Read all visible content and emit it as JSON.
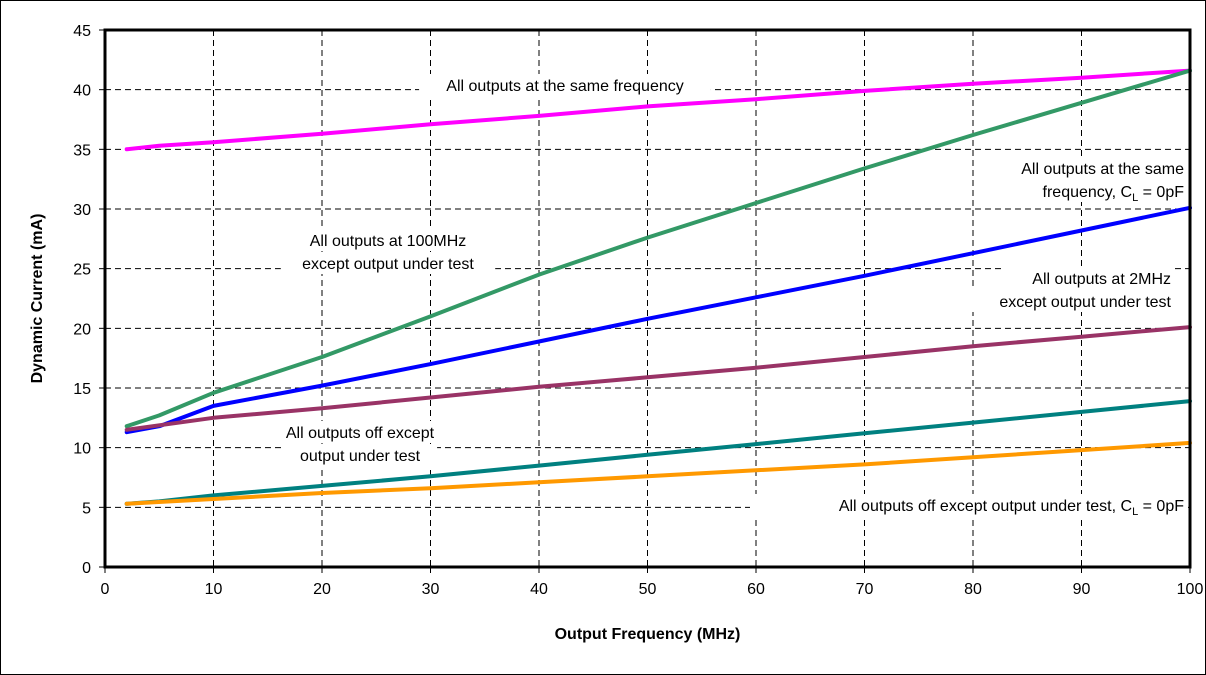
{
  "chart_data": {
    "type": "line",
    "title": "",
    "xlabel": "Output Frequency (MHz)",
    "ylabel": "Dynamic Current (mA)",
    "xlim": [
      0,
      100
    ],
    "ylim": [
      0,
      45
    ],
    "x_ticks": [
      "0",
      "10",
      "20",
      "30",
      "40",
      "50",
      "60",
      "70",
      "80",
      "90",
      "100"
    ],
    "y_ticks": [
      "0",
      "5",
      "10",
      "15",
      "20",
      "25",
      "30",
      "35",
      "40",
      "45"
    ],
    "grid": "dashed",
    "series": [
      {
        "color": "#ff00ff",
        "x": [
          2,
          5,
          10,
          20,
          30,
          40,
          50,
          60,
          70,
          80,
          90,
          100
        ],
        "y": [
          35.0,
          35.3,
          35.6,
          36.3,
          37.1,
          37.8,
          38.6,
          39.2,
          39.9,
          40.5,
          41.0,
          41.6
        ]
      },
      {
        "color": "#339966",
        "x": [
          2,
          5,
          10,
          20,
          30,
          40,
          50,
          60,
          70,
          80,
          90,
          100
        ],
        "y": [
          11.8,
          12.7,
          14.6,
          17.6,
          21.0,
          24.5,
          27.6,
          30.5,
          33.4,
          36.2,
          38.9,
          41.6
        ]
      },
      {
        "color": "#0000ff",
        "x": [
          2,
          5,
          10,
          20,
          30,
          40,
          50,
          60,
          70,
          80,
          90,
          100
        ],
        "y": [
          11.3,
          11.8,
          13.5,
          15.2,
          17.0,
          18.9,
          20.8,
          22.6,
          24.4,
          26.3,
          28.2,
          30.1
        ]
      },
      {
        "color": "#993366",
        "x": [
          2,
          10,
          20,
          30,
          40,
          50,
          60,
          70,
          80,
          90,
          100
        ],
        "y": [
          11.5,
          12.5,
          13.3,
          14.2,
          15.1,
          15.9,
          16.7,
          17.6,
          18.5,
          19.3,
          20.1
        ]
      },
      {
        "color": "#008080",
        "x": [
          2,
          5,
          10,
          20,
          30,
          40,
          50,
          60,
          70,
          80,
          90,
          100
        ],
        "y": [
          5.3,
          5.5,
          6.0,
          6.8,
          7.6,
          8.5,
          9.4,
          10.3,
          11.2,
          12.1,
          13.0,
          13.9
        ]
      },
      {
        "color": "#ff9900",
        "x": [
          2,
          10,
          20,
          30,
          40,
          50,
          60,
          70,
          80,
          90,
          100
        ],
        "y": [
          5.3,
          5.7,
          6.2,
          6.6,
          7.1,
          7.6,
          8.1,
          8.6,
          9.2,
          9.8,
          10.4
        ]
      }
    ],
    "annotations": [
      {
        "lines": [
          "All outputs at the same frequency"
        ]
      },
      {
        "lines": [
          "All outputs at the same",
          "frequency, C_L = 0pF"
        ]
      },
      {
        "lines": [
          "All outputs at 100MHz",
          "except output under test"
        ]
      },
      {
        "lines": [
          "All outputs at 2MHz",
          "except output under test"
        ]
      },
      {
        "lines": [
          "All outputs off except",
          "output under test"
        ]
      },
      {
        "lines": [
          "All outputs off except output under test, C_L = 0pF"
        ]
      }
    ]
  }
}
